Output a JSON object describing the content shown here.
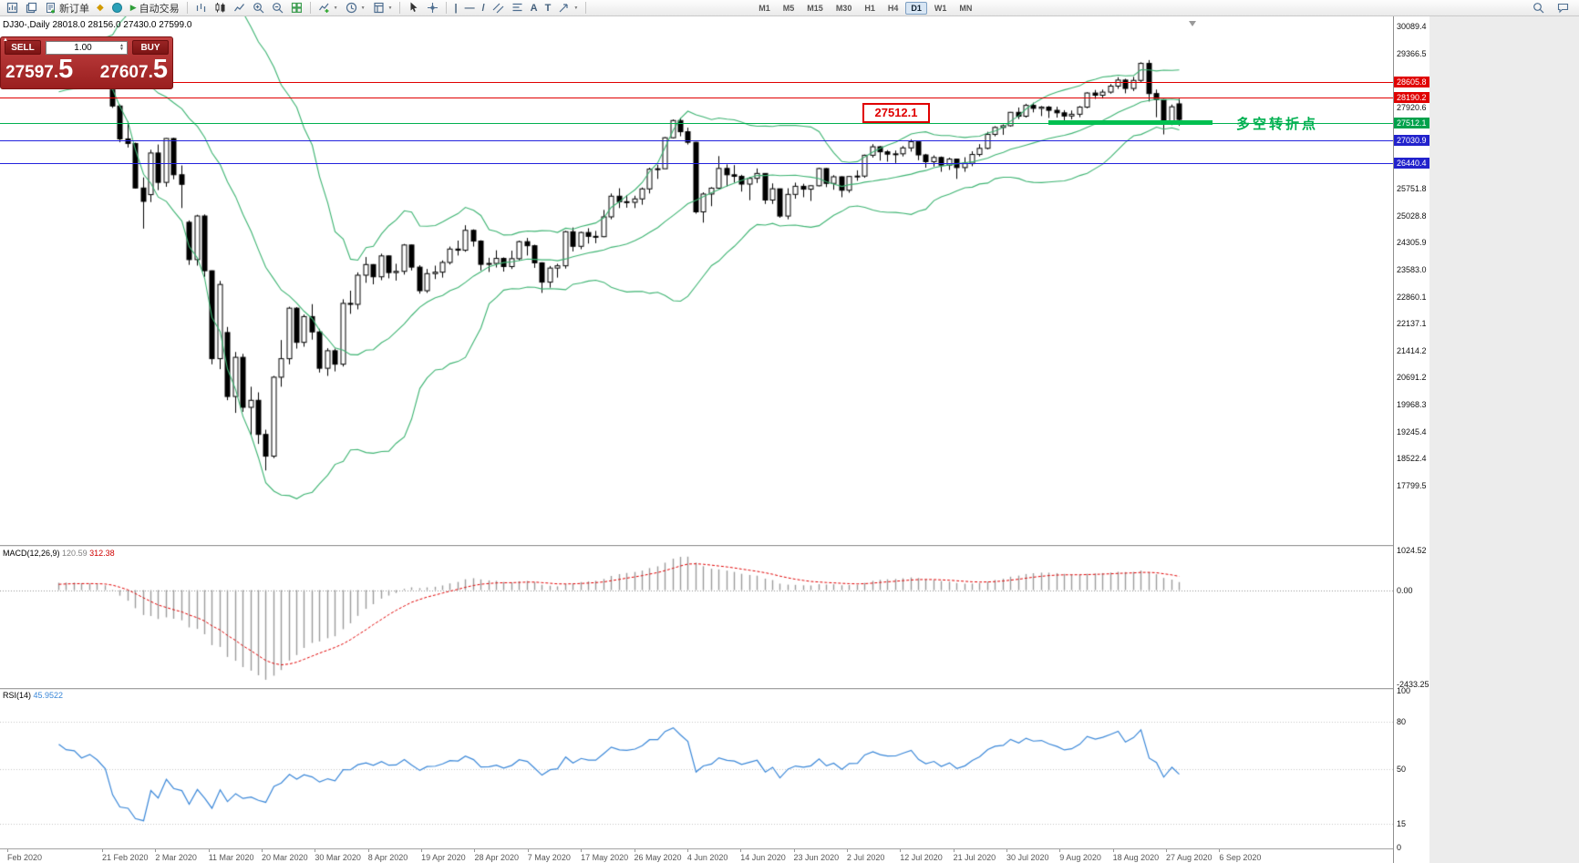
{
  "icons": {
    "dropdown": "▼",
    "play": "▶",
    "diamond": "◆",
    "spin_up": "▲",
    "spin_down": "▼",
    "collapse": "▲",
    "vline": "|",
    "hline": "—",
    "trendline": "/",
    "text_tool": "A",
    "label_tool": "T"
  },
  "toolbar": {
    "new_order": "新订单",
    "autotrading": "自动交易",
    "timeframes": [
      "M1",
      "M5",
      "M15",
      "M30",
      "H1",
      "H4",
      "D1",
      "W1",
      "MN"
    ],
    "active_timeframe": "D1"
  },
  "chart": {
    "title": "DJ30-,Daily  28018.0 28156.0 27430.0 27599.0"
  },
  "trade_panel": {
    "sell_label": "SELL",
    "buy_label": "BUY",
    "volume": "1.00",
    "sell_price": "27597.",
    "sell_price_big": "5",
    "buy_price": "27607.",
    "buy_price_big": "5"
  },
  "annotations": {
    "level_callout": "27512.1",
    "turning_point": "多空转折点"
  },
  "price_axis": {
    "labels": [
      "30089.4",
      "29366.5",
      "27920.6",
      "25751.8",
      "25028.8",
      "24305.9",
      "23583.0",
      "22860.1",
      "22137.1",
      "21414.2",
      "20691.2",
      "19968.3",
      "19245.4",
      "18522.4",
      "17799.5"
    ]
  },
  "levels": [
    {
      "price": 28605.8,
      "label": "28605.8",
      "line_color": "#e00000",
      "badge_color": "#e00000"
    },
    {
      "price": 28190.2,
      "label": "28190.2",
      "line_color": "#e00000",
      "badge_color": "#e00000"
    },
    {
      "price": 27512.1,
      "label": "27512.1",
      "line_color": "#00b050",
      "badge_color": "#00a14b"
    },
    {
      "price": 27030.9,
      "label": "27030.9",
      "line_color": "#2222dd",
      "badge_color": "#2222cc"
    },
    {
      "price": 26440.4,
      "label": "26440.4",
      "line_color": "#2222dd",
      "badge_color": "#2222cc"
    }
  ],
  "highlight_segment": {
    "price": 27512.1,
    "x_start": 1150,
    "x_end": 1330,
    "thickness": 5,
    "color": "#00c050"
  },
  "macd_panel": {
    "name": "MACD(12,26,9)",
    "value_main": "120.59",
    "value_signal": "312.38",
    "axis_labels": [
      "1024.52",
      "0.00",
      "-2433.25"
    ],
    "max": 1024.52,
    "min": -2433.25
  },
  "rsi_panel": {
    "name": "RSI(14)",
    "value": "45.9522",
    "axis_labels": [
      "100",
      "80",
      "50",
      "15",
      "0"
    ],
    "levels": [
      80,
      50,
      15
    ]
  },
  "chart_data": {
    "type": "candlestick",
    "title": "DJ30- Daily",
    "x_labels": [
      "Feb 2020",
      "21 Feb 2020",
      "2 Mar 2020",
      "11 Mar 2020",
      "20 Mar 2020",
      "30 Mar 2020",
      "8 Apr 2020",
      "19 Apr 2020",
      "28 Apr 2020",
      "7 May 2020",
      "17 May 2020",
      "26 May 2020",
      "4 Jun 2020",
      "14 Jun 2020",
      "23 Jun 2020",
      "2 Jul 2020",
      "12 Jul 2020",
      "21 Jul 2020",
      "30 Jul 2020",
      "9 Aug 2020",
      "18 Aug 2020",
      "27 Aug 2020",
      "6 Sep 2020"
    ],
    "ylim": [
      16218,
      30358
    ],
    "indicators": [
      {
        "type": "bollinger",
        "period": 20,
        "deviation": 2
      },
      {
        "type": "macd",
        "fast": 12,
        "slow": 26,
        "signal": 9,
        "current": [
          120.59,
          312.38
        ]
      },
      {
        "type": "rsi",
        "period": 14,
        "current": 45.9522
      }
    ],
    "series": [
      {
        "name": "DJ30- OHLC",
        "ohlc": [
          [
            29430,
            29568,
            29390,
            29551
          ],
          [
            29551,
            29590,
            29380,
            29423
          ],
          [
            29423,
            29470,
            29330,
            29398
          ],
          [
            29398,
            29420,
            29180,
            29232
          ],
          [
            29232,
            29360,
            29150,
            29348
          ],
          [
            29348,
            29370,
            29000,
            29220
          ],
          [
            29220,
            29250,
            28890,
            28992
          ],
          [
            28400,
            28430,
            27910,
            27961
          ],
          [
            27961,
            28000,
            26990,
            27081
          ],
          [
            27081,
            27550,
            26850,
            26958
          ],
          [
            26958,
            26980,
            25750,
            25767
          ],
          [
            25767,
            26050,
            24680,
            25409
          ],
          [
            25590,
            26790,
            25390,
            26703
          ],
          [
            26703,
            26930,
            25710,
            25917
          ],
          [
            25917,
            27100,
            25800,
            27091
          ],
          [
            27091,
            27110,
            26000,
            26121
          ],
          [
            26121,
            26370,
            25230,
            25865
          ],
          [
            24850,
            24900,
            23710,
            23851
          ],
          [
            23851,
            25050,
            23690,
            25018
          ],
          [
            25018,
            25060,
            23390,
            23553
          ],
          [
            23553,
            23560,
            21050,
            21201
          ],
          [
            21201,
            23280,
            20920,
            23186
          ],
          [
            21900,
            22050,
            20090,
            20189
          ],
          [
            20189,
            21380,
            19750,
            21237
          ],
          [
            21237,
            21330,
            19780,
            19899
          ],
          [
            19899,
            20450,
            19150,
            20087
          ],
          [
            20087,
            20300,
            18920,
            19174
          ],
          [
            19174,
            19300,
            18210,
            18592
          ],
          [
            18592,
            20740,
            18540,
            20705
          ],
          [
            20705,
            21700,
            20450,
            21200
          ],
          [
            21200,
            22590,
            21050,
            22552
          ],
          [
            22552,
            22580,
            21470,
            21637
          ],
          [
            21637,
            22380,
            21520,
            22327
          ],
          [
            22327,
            22660,
            21710,
            21917
          ],
          [
            21917,
            22000,
            20830,
            20944
          ],
          [
            20944,
            21480,
            20740,
            21413
          ],
          [
            21413,
            21470,
            20860,
            21053
          ],
          [
            21053,
            22790,
            20990,
            22680
          ],
          [
            22680,
            23020,
            22400,
            22654
          ],
          [
            22654,
            23510,
            22520,
            23434
          ],
          [
            23434,
            23920,
            23230,
            23719
          ],
          [
            23719,
            23730,
            23190,
            23391
          ],
          [
            23391,
            24010,
            23300,
            23950
          ],
          [
            23950,
            23960,
            23350,
            23504
          ],
          [
            23504,
            23740,
            23290,
            23537
          ],
          [
            23537,
            24270,
            23450,
            24242
          ],
          [
            24242,
            24250,
            23560,
            23650
          ],
          [
            23650,
            23700,
            22940,
            23019
          ],
          [
            23019,
            23600,
            22960,
            23476
          ],
          [
            23476,
            23690,
            23330,
            23515
          ],
          [
            23515,
            23830,
            23370,
            23775
          ],
          [
            23775,
            24200,
            23720,
            24134
          ],
          [
            24134,
            24360,
            23960,
            24102
          ],
          [
            24102,
            24770,
            24060,
            24634
          ],
          [
            24634,
            24660,
            24200,
            24346
          ],
          [
            24346,
            24370,
            23560,
            23724
          ],
          [
            23724,
            23900,
            23520,
            23749
          ],
          [
            23749,
            24100,
            23640,
            23883
          ],
          [
            23883,
            23910,
            23530,
            23665
          ],
          [
            23665,
            24090,
            23600,
            23876
          ],
          [
            23876,
            24360,
            23830,
            24331
          ],
          [
            24331,
            24430,
            23960,
            24222
          ],
          [
            24222,
            24250,
            23630,
            23765
          ],
          [
            23765,
            23780,
            22960,
            23248
          ],
          [
            23248,
            23680,
            23100,
            23625
          ],
          [
            23625,
            23740,
            23370,
            23685
          ],
          [
            23685,
            24620,
            23610,
            24597
          ],
          [
            24597,
            24710,
            24070,
            24207
          ],
          [
            24207,
            24600,
            24130,
            24576
          ],
          [
            24576,
            24690,
            24280,
            24474
          ],
          [
            24474,
            24620,
            24290,
            24465
          ],
          [
            24465,
            25180,
            24450,
            24995
          ],
          [
            24995,
            25620,
            24930,
            25548
          ],
          [
            25548,
            25760,
            25230,
            25401
          ],
          [
            25401,
            25580,
            25240,
            25383
          ],
          [
            25383,
            25560,
            25230,
            25475
          ],
          [
            25475,
            25780,
            25320,
            25743
          ],
          [
            25743,
            26310,
            25620,
            26270
          ],
          [
            26270,
            26390,
            26010,
            26282
          ],
          [
            26282,
            27130,
            26290,
            27111
          ],
          [
            27111,
            27600,
            27090,
            27572
          ],
          [
            27572,
            27640,
            27150,
            27272
          ],
          [
            27272,
            27380,
            26930,
            26990
          ],
          [
            26990,
            27000,
            25080,
            25128
          ],
          [
            25128,
            25650,
            24840,
            25605
          ],
          [
            25605,
            25790,
            25280,
            25763
          ],
          [
            25763,
            26620,
            25740,
            26290
          ],
          [
            26290,
            26400,
            25810,
            26120
          ],
          [
            26120,
            26380,
            25910,
            26080
          ],
          [
            26080,
            26120,
            25670,
            25871
          ],
          [
            25871,
            26060,
            25440,
            26025
          ],
          [
            26025,
            26290,
            25900,
            26156
          ],
          [
            26156,
            26160,
            25340,
            25445
          ],
          [
            25445,
            25890,
            25340,
            25746
          ],
          [
            25746,
            25750,
            24970,
            25016
          ],
          [
            25016,
            25760,
            24930,
            25596
          ],
          [
            25596,
            25910,
            25480,
            25813
          ],
          [
            25813,
            25880,
            25520,
            25735
          ],
          [
            25735,
            25840,
            25420,
            25827
          ],
          [
            25827,
            26310,
            25810,
            26287
          ],
          [
            26287,
            26300,
            25790,
            25890
          ],
          [
            25890,
            26110,
            25720,
            26067
          ],
          [
            26067,
            26080,
            25520,
            25706
          ],
          [
            25706,
            26090,
            25640,
            26075
          ],
          [
            26075,
            26240,
            25960,
            26086
          ],
          [
            26086,
            26660,
            26040,
            26643
          ],
          [
            26643,
            26940,
            26580,
            26870
          ],
          [
            26870,
            26890,
            26500,
            26735
          ],
          [
            26735,
            26780,
            26470,
            26672
          ],
          [
            26672,
            26770,
            26430,
            26681
          ],
          [
            26681,
            26890,
            26610,
            26840
          ],
          [
            26840,
            27070,
            26740,
            27006
          ],
          [
            27006,
            27010,
            26510,
            26652
          ],
          [
            26652,
            26680,
            26310,
            26470
          ],
          [
            26470,
            26640,
            26340,
            26584
          ],
          [
            26584,
            26610,
            26200,
            26379
          ],
          [
            26379,
            26580,
            26250,
            26540
          ],
          [
            26540,
            26550,
            26010,
            26313
          ],
          [
            26313,
            26590,
            26200,
            26428
          ],
          [
            26428,
            26750,
            26350,
            26664
          ],
          [
            26664,
            26940,
            26610,
            26828
          ],
          [
            26828,
            27270,
            26800,
            27202
          ],
          [
            27202,
            27420,
            27150,
            27387
          ],
          [
            27387,
            27470,
            27190,
            27433
          ],
          [
            27433,
            27800,
            27410,
            27791
          ],
          [
            27791,
            27920,
            27610,
            27687
          ],
          [
            27687,
            28020,
            27650,
            27977
          ],
          [
            27977,
            28050,
            27790,
            27897
          ],
          [
            27897,
            27960,
            27690,
            27931
          ],
          [
            27931,
            27960,
            27640,
            27845
          ],
          [
            27845,
            27940,
            27650,
            27778
          ],
          [
            27778,
            27850,
            27570,
            27693
          ],
          [
            27693,
            27840,
            27600,
            27740
          ],
          [
            27740,
            27960,
            27660,
            27930
          ],
          [
            27930,
            28330,
            27900,
            28308
          ],
          [
            28308,
            28390,
            28150,
            28248
          ],
          [
            28248,
            28400,
            28160,
            28332
          ],
          [
            28332,
            28550,
            28290,
            28492
          ],
          [
            28492,
            28730,
            28420,
            28654
          ],
          [
            28654,
            28690,
            28300,
            28430
          ],
          [
            28430,
            28740,
            28360,
            28645
          ],
          [
            28645,
            29130,
            28600,
            29100
          ],
          [
            29100,
            29190,
            28080,
            28293
          ],
          [
            28293,
            28400,
            27660,
            28133
          ],
          [
            28133,
            28150,
            27200,
            27501
          ],
          [
            27501,
            28000,
            27450,
            27940
          ],
          [
            28018,
            28156,
            27430,
            27599
          ]
        ]
      }
    ]
  },
  "colors": {
    "bollinger": "#3cb371",
    "candle_up_fill": "#ffffff",
    "candle_down_fill": "#000000",
    "candle_border": "#000000",
    "macd_hist": "#9c9c9c",
    "macd_signal": "#e00000",
    "rsi_line": "#3a87d8",
    "level_red": "#e00000",
    "level_green": "#00b050",
    "level_blue": "#2222cc",
    "panel_red": "#b03030",
    "axis_text": "#111111",
    "date_text": "#555555"
  }
}
